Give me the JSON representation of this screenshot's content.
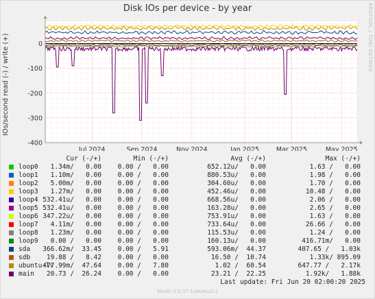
{
  "title": "Disk IOs per device - by year",
  "side_credit": "RRDTOOL / TOBI OETIKER",
  "footer": "Munin 2.0.37-1ubuntu0.1",
  "last_update": "Last update: Fri Jun 20 02:00:20 2025",
  "legend_header": {
    "cur": "Cur (-/+)",
    "min": "Min (-/+)",
    "avg": "Avg (-/+)",
    "max": "Max (-/+)"
  },
  "legend": [
    {
      "name": "loop0",
      "color": "#00cc00",
      "cur": "1.34m/   0.00",
      "min": "0.00 /   0.00",
      "avg": "652.12u/   0.00",
      "max": "1.63 /   0.00"
    },
    {
      "name": "loop1",
      "color": "#0066b3",
      "cur": "1.10m/   0.00",
      "min": "0.00 /   0.00",
      "avg": "880.53u/   0.00",
      "max": "1.98 /   0.00"
    },
    {
      "name": "loop2",
      "color": "#ff8000",
      "cur": "5.00m/   0.00",
      "min": "0.00 /   0.00",
      "avg": "304.60u/   0.00",
      "max": "1.70 /   0.00"
    },
    {
      "name": "loop3",
      "color": "#ffcc00",
      "cur": "1.27m/   0.00",
      "min": "0.00 /   0.00",
      "avg": "452.46u/   0.00",
      "max": "10.48 /   0.00"
    },
    {
      "name": "loop4",
      "color": "#330099",
      "cur": "532.41u/   0.00",
      "min": "0.00 /   0.00",
      "avg": "668.56u/   0.00",
      "max": "2.06 /   0.00"
    },
    {
      "name": "loop5",
      "color": "#990099",
      "cur": "532.41u/   0.00",
      "min": "0.00 /   0.00",
      "avg": "163.28u/   0.00",
      "max": "2.65 /   0.00"
    },
    {
      "name": "loop6",
      "color": "#ccff00",
      "cur": "347.22u/   0.00",
      "min": "0.00 /   0.00",
      "avg": "753.91u/   0.00",
      "max": "1.63 /   0.00"
    },
    {
      "name": "loop7",
      "color": "#ff0000",
      "cur": "4.11m/   0.00",
      "min": "0.00 /   0.00",
      "avg": "733.64u/   0.00",
      "max": "26.66 /   0.00"
    },
    {
      "name": "loop8",
      "color": "#808080",
      "cur": "1.23m/   0.00",
      "min": "0.00 /   0.00",
      "avg": "115.53u/   0.00",
      "max": "1.24 /   0.00"
    },
    {
      "name": "loop9",
      "color": "#008f00",
      "cur": "0.00 /   0.00",
      "min": "0.00 /   0.00",
      "avg": "160.13u/   0.00",
      "max": "416.71m/   0.00"
    },
    {
      "name": "sda",
      "color": "#00487d",
      "cur": "366.62m/  33.45",
      "min": "0.00 /   5.91",
      "avg": "593.06m/  44.37",
      "max": "407.65 /   1.03k"
    },
    {
      "name": "sdb",
      "color": "#b35a00",
      "cur": "19.88 /   8.42",
      "min": "0.00 /   0.00",
      "avg": "16.50 /  10.74",
      "max": "1.33k/ 895.09"
    },
    {
      "name": "ubuntu-lv",
      "color": "#b38f00",
      "cur": "477.99m/  47.64",
      "min": "0.00 /   7.80",
      "avg": "1.02 /  60.54",
      "max": "647.77 /   2.17k"
    },
    {
      "name": "main",
      "color": "#6b006b",
      "cur": "20.73 /  26.24",
      "min": "0.00 /   0.00",
      "avg": "23.21 /  22.25",
      "max": "1.92k/   1.88k"
    }
  ],
  "chart_data": {
    "type": "line",
    "title": "Disk IOs per device - by year",
    "ylabel": "IOs/second read (-) / write (+)",
    "ylim": [
      -400,
      90
    ],
    "yticks": [
      0,
      -100,
      -200,
      -300,
      -400
    ],
    "x_ticks": [
      "Jul 2024",
      "Sep 2024",
      "Nov 2024",
      "Jan 2025",
      "Mar 2025",
      "May 2025"
    ],
    "x_tick_fracs": [
      0.15,
      0.31,
      0.47,
      0.64,
      0.79,
      0.95
    ],
    "spikes": [
      {
        "x_frac": 0.22,
        "value": -280
      },
      {
        "x_frac": 0.305,
        "value": -310
      },
      {
        "x_frac": 0.325,
        "value": -240
      },
      {
        "x_frac": 0.375,
        "value": -130
      },
      {
        "x_frac": 0.77,
        "value": -205
      },
      {
        "x_frac": 0.04,
        "value": -95
      },
      {
        "x_frac": 0.09,
        "value": -90
      }
    ],
    "series": [
      {
        "name": "ubuntu-lv",
        "color": "#b38f00",
        "level": 62,
        "amp": 10
      },
      {
        "name": "sda",
        "color": "#00487d",
        "level": 45,
        "amp": 8
      },
      {
        "name": "main",
        "color": "#6b006b",
        "level": 22,
        "amp": 7
      },
      {
        "name": "sdb",
        "color": "#b35a00",
        "level": 11,
        "amp": 5
      },
      {
        "name": "loop3",
        "color": "#ffcc00",
        "level": 70,
        "amp": 6
      }
    ],
    "grid": true
  }
}
